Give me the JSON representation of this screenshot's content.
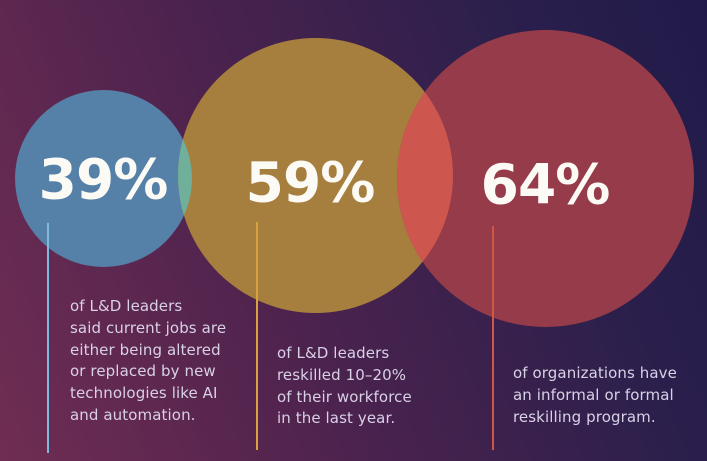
{
  "chart_data": {
    "type": "bubble",
    "title": "",
    "legend_position": "none",
    "series": [
      {
        "label": "39%",
        "value": 39,
        "color": "#5580A8",
        "connector_color": "#7CBADF",
        "description": "of L&D leaders said current jobs are either being altered or replaced by new technologies like AI and automation."
      },
      {
        "label": "59%",
        "value": 59,
        "color": "#A67F3E",
        "connector_color": "#D9A23C",
        "description": "of L&D leaders reskilled 10–20% of their workforce in the last year."
      },
      {
        "label": "64%",
        "value": 64,
        "color": "#953B49",
        "connector_color": "#CF5743",
        "description": "of organizations have an informal or formal reskilling program."
      }
    ],
    "overlap_colors": [
      {
        "between": "blue-gold",
        "color": "#70B09A"
      },
      {
        "between": "gold-red",
        "color": "#CD574F"
      }
    ],
    "background": {
      "gradient_from": "#702D53",
      "gradient_to": "#211A49"
    },
    "text_color": "#D9D1E6",
    "value_text_color": "#FCFAF5"
  },
  "stats": [
    {
      "value": "39%",
      "description": "of L&D leaders\nsaid current jobs are\neither being altered\nor replaced by new\ntechnologies like AI\nand automation."
    },
    {
      "value": "59%",
      "description": "of L&D leaders\nreskilled 10–20%\nof their workforce\nin the last year."
    },
    {
      "value": "64%",
      "description": "of organizations have\nan informal or formal\nreskilling program."
    }
  ]
}
